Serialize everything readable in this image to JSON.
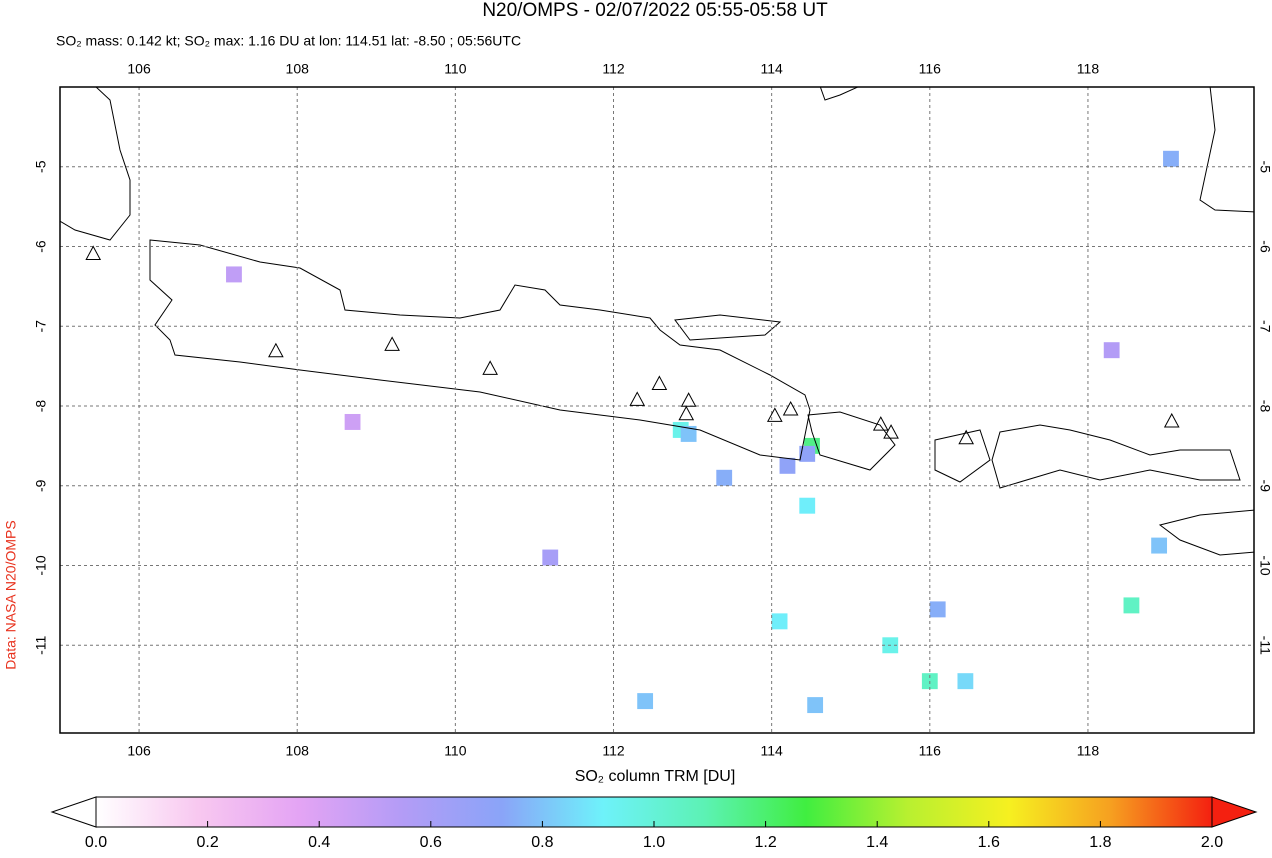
{
  "chart_data": {
    "type": "map",
    "title": "N20/OMPS - 02/07/2022 05:55-05:58 UT",
    "subtitle": "SO₂ mass: 0.142 kt; SO₂ max: 1.16 DU at lon: 114.51 lat: -8.50 ; 05:56UTC",
    "credit": "Data: NASA N20/OMPS",
    "xlim": [
      105,
      120.1
    ],
    "ylim": [
      -12.1,
      -4
    ],
    "xticks": [
      106,
      108,
      110,
      112,
      114,
      116,
      118
    ],
    "yticks": [
      -5,
      -6,
      -7,
      -8,
      -9,
      -10,
      -11
    ],
    "grid": true,
    "volcanoes": {
      "lon": [
        105.42,
        107.73,
        109.2,
        110.44,
        112.3,
        112.58,
        112.95,
        112.92,
        114.04,
        114.24,
        115.38,
        115.51,
        116.46,
        119.06
      ],
      "lat": [
        -6.1,
        -7.32,
        -7.24,
        -7.54,
        -7.93,
        -7.73,
        -7.94,
        -8.11,
        -8.13,
        -8.05,
        -8.24,
        -8.34,
        -8.41,
        -8.2
      ]
    },
    "cells": {
      "lon": [
        114.51,
        114.45,
        112.85,
        112.95,
        113.4,
        114.2,
        114.45,
        116.1,
        114.1,
        115.5,
        116.0,
        116.45,
        114.55,
        112.4,
        118.55,
        118.9,
        119.05,
        107.2,
        108.7,
        111.2,
        118.3
      ],
      "lat": [
        -8.5,
        -8.6,
        -8.3,
        -8.35,
        -8.9,
        -8.75,
        -9.25,
        -10.55,
        -10.7,
        -11.0,
        -11.45,
        -11.45,
        -11.75,
        -11.7,
        -10.5,
        -9.75,
        -4.9,
        -6.35,
        -8.2,
        -9.9,
        -7.3
      ],
      "values": [
        1.16,
        0.7,
        0.95,
        0.8,
        0.75,
        0.7,
        0.9,
        0.75,
        0.9,
        0.95,
        1.05,
        0.85,
        0.8,
        0.8,
        1.05,
        0.8,
        0.75,
        0.5,
        0.45,
        0.6,
        0.55
      ]
    },
    "colorbar": {
      "label": "SO₂ column TRM [DU]",
      "lim": [
        0,
        2
      ],
      "colors": [
        "#ffffff",
        "#f8c8f0",
        "#e4a4f4",
        "#b49cf6",
        "#8aa4f8",
        "#6ef2fa",
        "#5cf2b4",
        "#40ee40",
        "#b8f030",
        "#f6f020",
        "#f6a020",
        "#f42010"
      ],
      "ticks": [
        {
          "value": 0,
          "label": "0.0"
        },
        {
          "value": 0.2,
          "label": "0.2"
        },
        {
          "value": 0.4,
          "label": "0.4"
        },
        {
          "value": 0.6,
          "label": "0.6"
        },
        {
          "value": 0.8,
          "label": "0.8"
        },
        {
          "value": 1,
          "label": "1.0"
        },
        {
          "value": 1.2,
          "label": "1.2"
        },
        {
          "value": 1.4,
          "label": "1.4"
        },
        {
          "value": 1.6,
          "label": "1.6"
        },
        {
          "value": 1.8,
          "label": "1.8"
        },
        {
          "value": 2,
          "label": "2.0"
        }
      ]
    }
  }
}
